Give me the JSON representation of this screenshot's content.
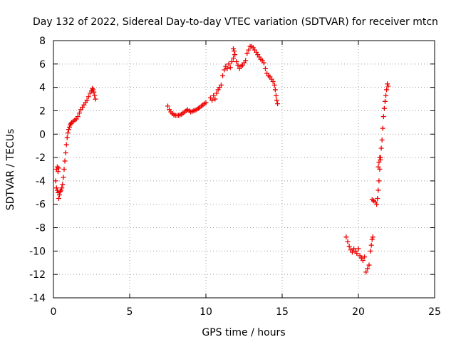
{
  "chart_data": {
    "type": "scatter",
    "title": "Day 132 of 2022, Sidereal Day-to-day VTEC variation (SDTVAR) for receiver mtcn",
    "xlabel": "GPS time / hours",
    "ylabel": "SDTVAR / TECUs",
    "xlim": [
      0,
      25
    ],
    "ylim": [
      -14,
      8
    ],
    "xticks": [
      0,
      5,
      10,
      15,
      20,
      25
    ],
    "yticks": [
      -14,
      -12,
      -10,
      -8,
      -6,
      -4,
      -2,
      0,
      2,
      4,
      6,
      8
    ],
    "grid": true,
    "marker": "plus",
    "color": "#ee0000",
    "series": [
      {
        "name": "SDTVAR",
        "x": [
          0.15,
          0.2,
          0.25,
          0.3,
          0.35,
          0.4,
          0.45,
          0.5,
          0.55,
          0.6,
          0.65,
          0.7,
          0.75,
          0.8,
          0.85,
          0.9,
          0.95,
          1.0,
          1.05,
          1.1,
          1.15,
          1.2,
          1.3,
          1.4,
          1.5,
          1.6,
          1.7,
          1.8,
          1.9,
          2.0,
          2.1,
          2.2,
          2.3,
          2.4,
          2.5,
          2.55,
          2.6,
          2.65,
          2.7,
          2.75,
          0.2,
          0.25,
          0.3,
          0.35,
          7.5,
          7.6,
          7.7,
          7.8,
          7.9,
          8.0,
          8.1,
          8.2,
          8.3,
          8.4,
          8.5,
          8.6,
          8.7,
          8.8,
          8.9,
          9.0,
          9.1,
          9.2,
          9.3,
          9.4,
          9.5,
          9.6,
          9.7,
          9.8,
          9.9,
          10.0,
          10.3,
          10.4,
          10.5,
          10.6,
          10.7,
          10.8,
          10.9,
          11.0,
          11.1,
          11.2,
          11.3,
          11.4,
          11.5,
          11.6,
          11.7,
          11.8,
          11.9,
          12.0,
          12.1,
          12.2,
          12.3,
          12.4,
          12.5,
          12.6,
          12.7,
          12.8,
          12.9,
          13.0,
          13.1,
          13.2,
          13.3,
          13.4,
          13.5,
          13.6,
          13.7,
          13.8,
          13.9,
          14.0,
          14.1,
          14.2,
          14.3,
          14.4,
          14.5,
          14.55,
          14.6,
          14.65,
          14.7,
          11.8,
          11.85,
          19.2,
          19.3,
          19.4,
          19.5,
          19.6,
          19.7,
          19.8,
          19.9,
          20.0,
          20.1,
          20.2,
          20.3,
          20.4,
          20.5,
          20.6,
          20.7,
          20.8,
          20.85,
          20.9,
          20.95,
          21.0,
          20.9,
          21.1,
          21.2,
          21.25,
          21.3,
          21.35,
          21.4,
          21.45,
          21.5,
          21.55,
          21.6,
          21.65,
          21.7,
          21.75,
          21.8,
          21.85,
          21.9,
          21.95,
          21.3,
          21.35,
          21.4,
          21.45
        ],
        "y": [
          -4.0,
          -4.6,
          -4.8,
          -5.0,
          -5.5,
          -5.2,
          -4.9,
          -4.8,
          -4.6,
          -4.3,
          -3.7,
          -3.0,
          -2.3,
          -1.6,
          -0.9,
          -0.3,
          0.1,
          0.4,
          0.6,
          0.8,
          0.9,
          1.0,
          1.1,
          1.2,
          1.3,
          1.5,
          1.8,
          2.1,
          2.3,
          2.5,
          2.7,
          2.9,
          3.2,
          3.5,
          3.7,
          3.9,
          3.8,
          3.6,
          3.3,
          3.0,
          -3.0,
          -2.8,
          -3.2,
          -2.9,
          2.4,
          2.1,
          1.9,
          1.75,
          1.65,
          1.6,
          1.6,
          1.6,
          1.65,
          1.7,
          1.8,
          1.9,
          2.0,
          2.1,
          2.0,
          1.9,
          1.95,
          2.0,
          2.05,
          2.1,
          2.2,
          2.3,
          2.4,
          2.5,
          2.6,
          2.7,
          3.1,
          2.9,
          3.3,
          3.0,
          3.5,
          3.8,
          4.0,
          4.2,
          5.0,
          5.5,
          5.8,
          5.6,
          6.0,
          5.7,
          6.2,
          7.3,
          6.8,
          6.2,
          5.9,
          5.6,
          5.8,
          5.9,
          6.1,
          6.3,
          6.9,
          7.2,
          7.5,
          7.5,
          7.4,
          7.2,
          7.0,
          6.8,
          6.6,
          6.4,
          6.3,
          6.1,
          5.6,
          5.2,
          5.0,
          4.9,
          4.7,
          4.5,
          4.2,
          3.8,
          3.3,
          2.9,
          2.6,
          6.5,
          7.1,
          -8.8,
          -9.2,
          -9.6,
          -9.9,
          -10.1,
          -9.8,
          -10.0,
          -10.2,
          -9.8,
          -10.4,
          -10.6,
          -10.8,
          -10.5,
          -11.8,
          -11.5,
          -11.2,
          -10.0,
          -9.5,
          -9.0,
          -8.8,
          -5.7,
          -5.6,
          -5.8,
          -6.0,
          -5.5,
          -4.8,
          -4.0,
          -3.0,
          -2.0,
          -1.2,
          -0.5,
          0.5,
          1.5,
          2.2,
          2.8,
          3.3,
          3.8,
          4.3,
          4.1,
          -2.8,
          -2.4,
          -2.0,
          -2.2
        ]
      }
    ]
  }
}
